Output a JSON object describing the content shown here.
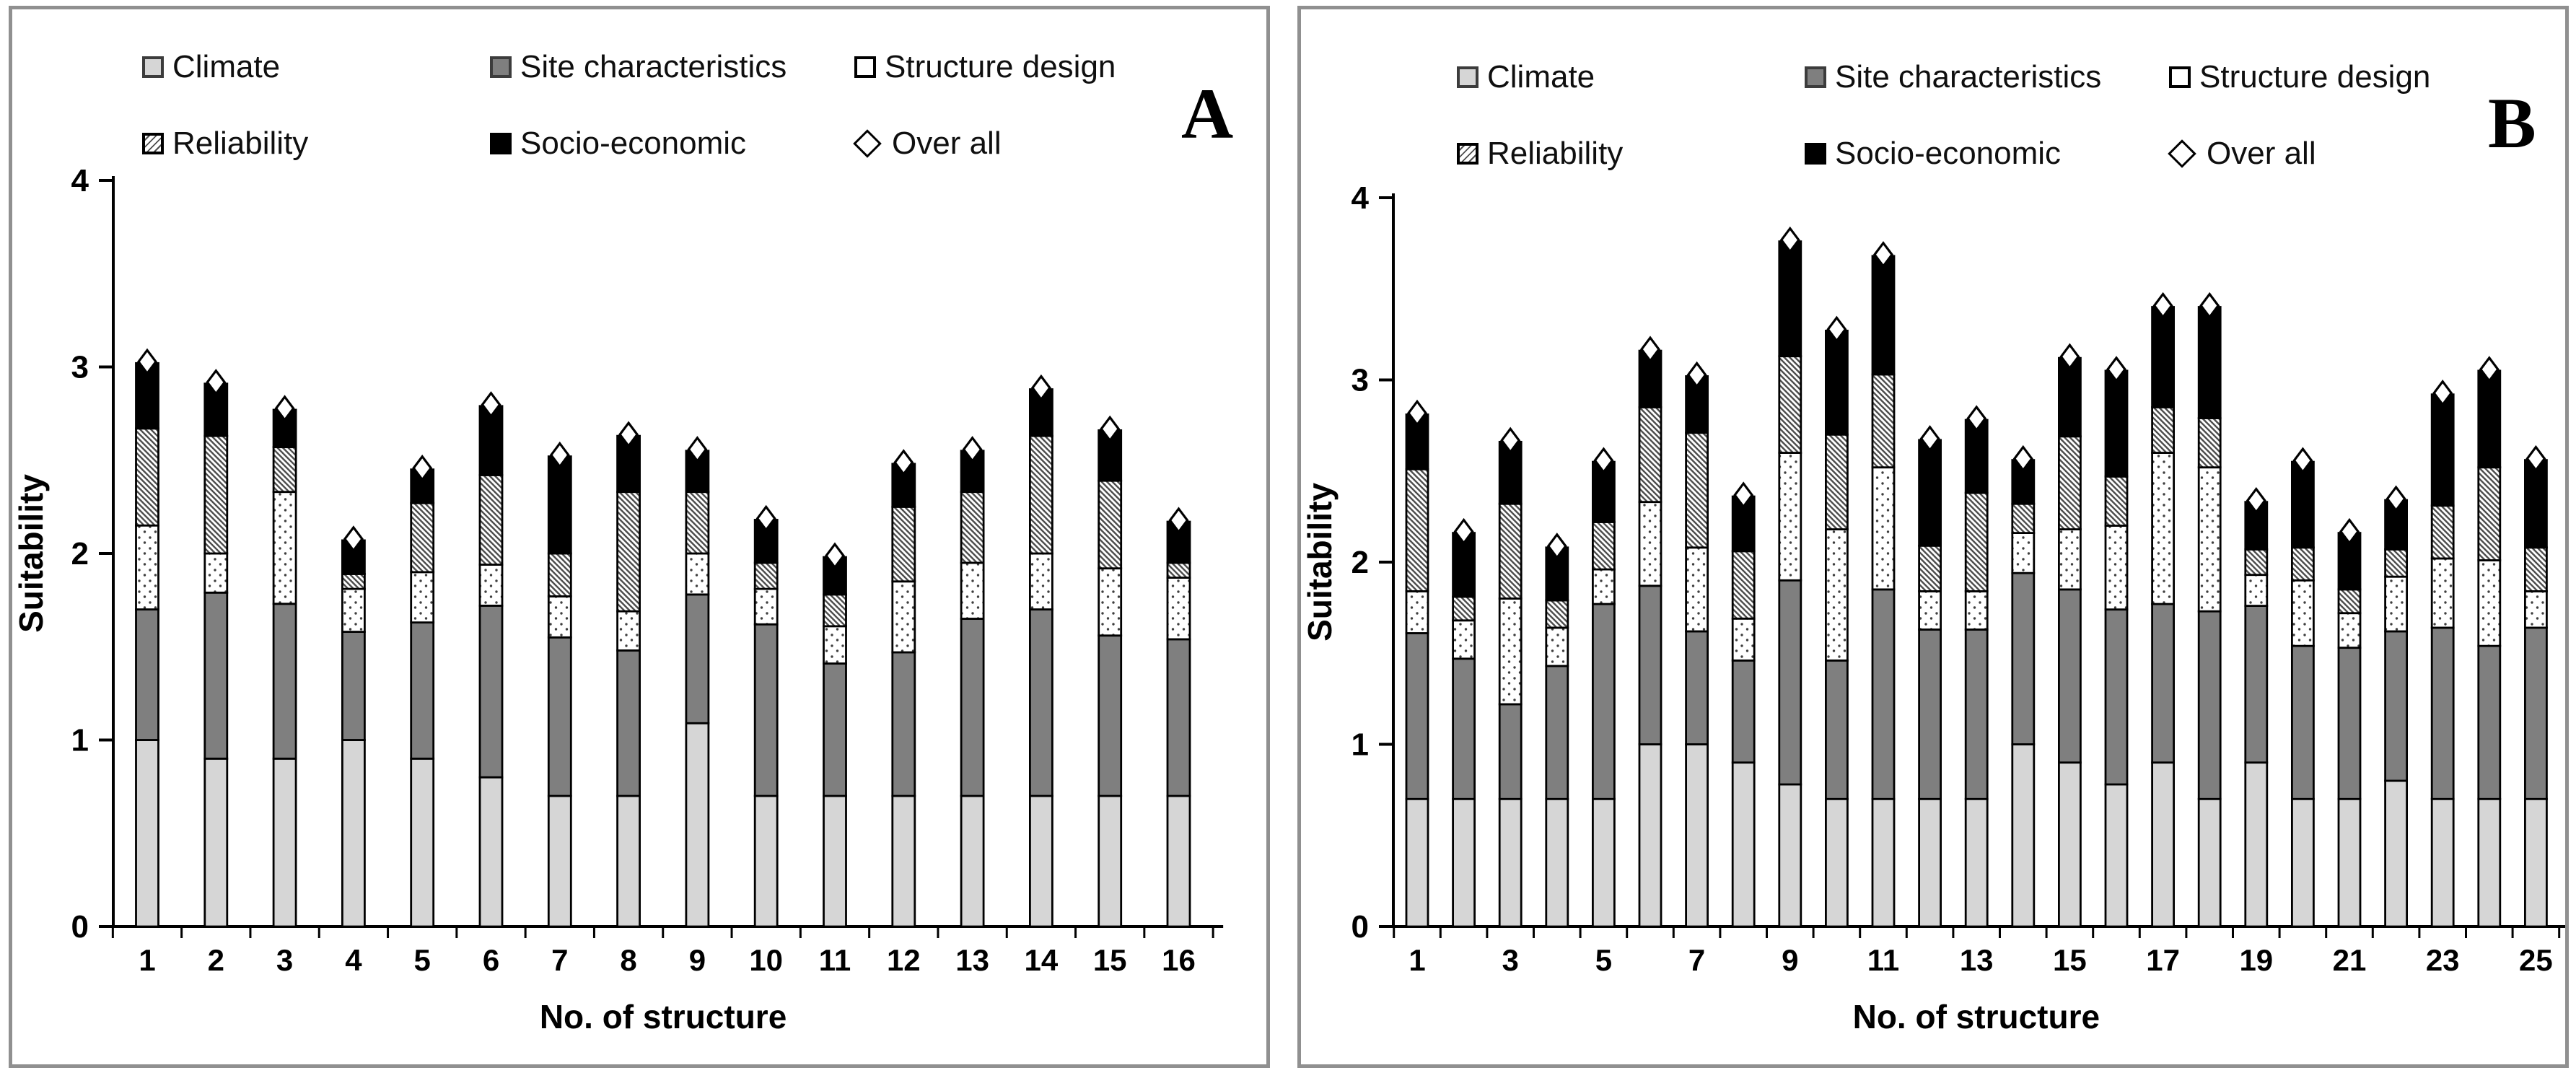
{
  "figure": {
    "description": "Stacked bar charts of suitability scores for water harvesting structures",
    "background": "#ffffff"
  },
  "legend": {
    "items": [
      {
        "id": "climate",
        "label": "Climate",
        "swatch": "light-gray-square"
      },
      {
        "id": "site_characteristics",
        "label": "Site characteristics",
        "swatch": "dark-gray-square"
      },
      {
        "id": "structure_design",
        "label": "Structure design",
        "swatch": "white-dotted-square"
      },
      {
        "id": "reliability",
        "label": "Reliability",
        "swatch": "diagonal-hatch-square"
      },
      {
        "id": "socio_economic",
        "label": "Socio-economic",
        "swatch": "black-square"
      },
      {
        "id": "over_all",
        "label": "Over all",
        "swatch": "open-diamond"
      }
    ]
  },
  "colors": {
    "climate": "#d6d6d6",
    "site_characteristics": "#7f7f7f",
    "structure_design": "#ffffff",
    "reliability_hatch_line": "#4d4d4d",
    "socio_economic": "#000000",
    "stroke": "#000000",
    "panel_border": "#909090"
  },
  "chart_data": [
    {
      "type": "bar",
      "stacked": true,
      "panel_label": "A",
      "title": "",
      "xlabel": "No. of structure",
      "ylabel": "Suitability",
      "ylim": [
        0,
        4
      ],
      "yticks": [
        0,
        1,
        2,
        3,
        4
      ],
      "x_label_step": 1,
      "categories": [
        1,
        2,
        3,
        4,
        5,
        6,
        7,
        8,
        9,
        10,
        11,
        12,
        13,
        14,
        15,
        16
      ],
      "series": [
        {
          "name": "Climate",
          "values": [
            1.0,
            0.9,
            0.9,
            1.0,
            0.9,
            0.8,
            0.7,
            0.7,
            1.09,
            0.7,
            0.7,
            0.7,
            0.7,
            0.7,
            0.7,
            0.7
          ]
        },
        {
          "name": "Site characteristics",
          "values": [
            0.7,
            0.89,
            0.83,
            0.58,
            0.73,
            0.92,
            0.85,
            0.78,
            0.69,
            0.92,
            0.71,
            0.77,
            0.95,
            1.0,
            0.86,
            0.84
          ]
        },
        {
          "name": "Structure design",
          "values": [
            0.45,
            0.21,
            0.6,
            0.23,
            0.27,
            0.22,
            0.22,
            0.21,
            0.22,
            0.19,
            0.2,
            0.38,
            0.3,
            0.3,
            0.36,
            0.33
          ]
        },
        {
          "name": "Reliability",
          "values": [
            0.52,
            0.63,
            0.24,
            0.08,
            0.37,
            0.48,
            0.23,
            0.64,
            0.33,
            0.14,
            0.17,
            0.4,
            0.38,
            0.63,
            0.47,
            0.08
          ]
        },
        {
          "name": "Socio-economic",
          "values": [
            0.35,
            0.28,
            0.2,
            0.18,
            0.18,
            0.37,
            0.52,
            0.3,
            0.22,
            0.23,
            0.2,
            0.23,
            0.22,
            0.25,
            0.27,
            0.22
          ]
        }
      ],
      "overall_markers": [
        3.02,
        2.91,
        2.77,
        2.07,
        2.45,
        2.79,
        2.52,
        2.63,
        2.55,
        2.18,
        1.98,
        2.48,
        2.55,
        2.88,
        2.66,
        2.17
      ]
    },
    {
      "type": "bar",
      "stacked": true,
      "panel_label": "B",
      "title": "",
      "xlabel": "No. of structure",
      "ylabel": "Suitability",
      "ylim": [
        0,
        4
      ],
      "yticks": [
        0,
        1,
        2,
        3,
        4
      ],
      "x_label_step": 2,
      "categories": [
        1,
        2,
        3,
        4,
        5,
        6,
        7,
        8,
        9,
        10,
        11,
        12,
        13,
        14,
        15,
        16,
        17,
        18,
        19,
        20,
        21,
        22,
        23,
        24,
        25
      ],
      "series": [
        {
          "name": "Climate",
          "values": [
            0.7,
            0.7,
            0.7,
            0.7,
            0.7,
            1.0,
            1.0,
            0.9,
            0.78,
            0.7,
            0.7,
            0.7,
            0.7,
            1.0,
            0.9,
            0.78,
            0.9,
            0.7,
            0.9,
            0.7,
            0.7,
            0.8,
            0.7,
            0.7,
            0.7
          ]
        },
        {
          "name": "Site characteristics",
          "values": [
            0.91,
            0.77,
            0.52,
            0.73,
            1.07,
            0.87,
            0.62,
            0.56,
            1.12,
            0.76,
            1.15,
            0.93,
            0.93,
            0.94,
            0.95,
            0.96,
            0.87,
            1.03,
            0.86,
            0.84,
            0.83,
            0.82,
            0.94,
            0.84,
            0.94
          ]
        },
        {
          "name": "Structure design",
          "values": [
            0.23,
            0.21,
            0.58,
            0.21,
            0.19,
            0.46,
            0.46,
            0.23,
            0.7,
            0.72,
            0.67,
            0.21,
            0.21,
            0.22,
            0.33,
            0.46,
            0.83,
            0.79,
            0.17,
            0.36,
            0.19,
            0.3,
            0.38,
            0.47,
            0.2
          ]
        },
        {
          "name": "Reliability",
          "values": [
            0.67,
            0.13,
            0.52,
            0.15,
            0.26,
            0.52,
            0.63,
            0.37,
            0.53,
            0.52,
            0.51,
            0.25,
            0.54,
            0.16,
            0.51,
            0.27,
            0.25,
            0.27,
            0.14,
            0.18,
            0.13,
            0.15,
            0.29,
            0.51,
            0.24
          ]
        },
        {
          "name": "Socio-economic",
          "values": [
            0.3,
            0.35,
            0.34,
            0.29,
            0.33,
            0.31,
            0.31,
            0.3,
            0.63,
            0.57,
            0.65,
            0.58,
            0.4,
            0.24,
            0.43,
            0.58,
            0.55,
            0.61,
            0.26,
            0.47,
            0.31,
            0.27,
            0.61,
            0.53,
            0.48
          ]
        }
      ],
      "overall_markers": [
        2.81,
        2.16,
        2.66,
        2.08,
        2.55,
        3.16,
        3.02,
        2.36,
        3.76,
        3.27,
        3.68,
        2.67,
        2.78,
        2.56,
        3.12,
        3.05,
        3.4,
        3.4,
        2.33,
        2.55,
        2.16,
        2.34,
        2.92,
        3.05,
        2.56
      ]
    }
  ]
}
